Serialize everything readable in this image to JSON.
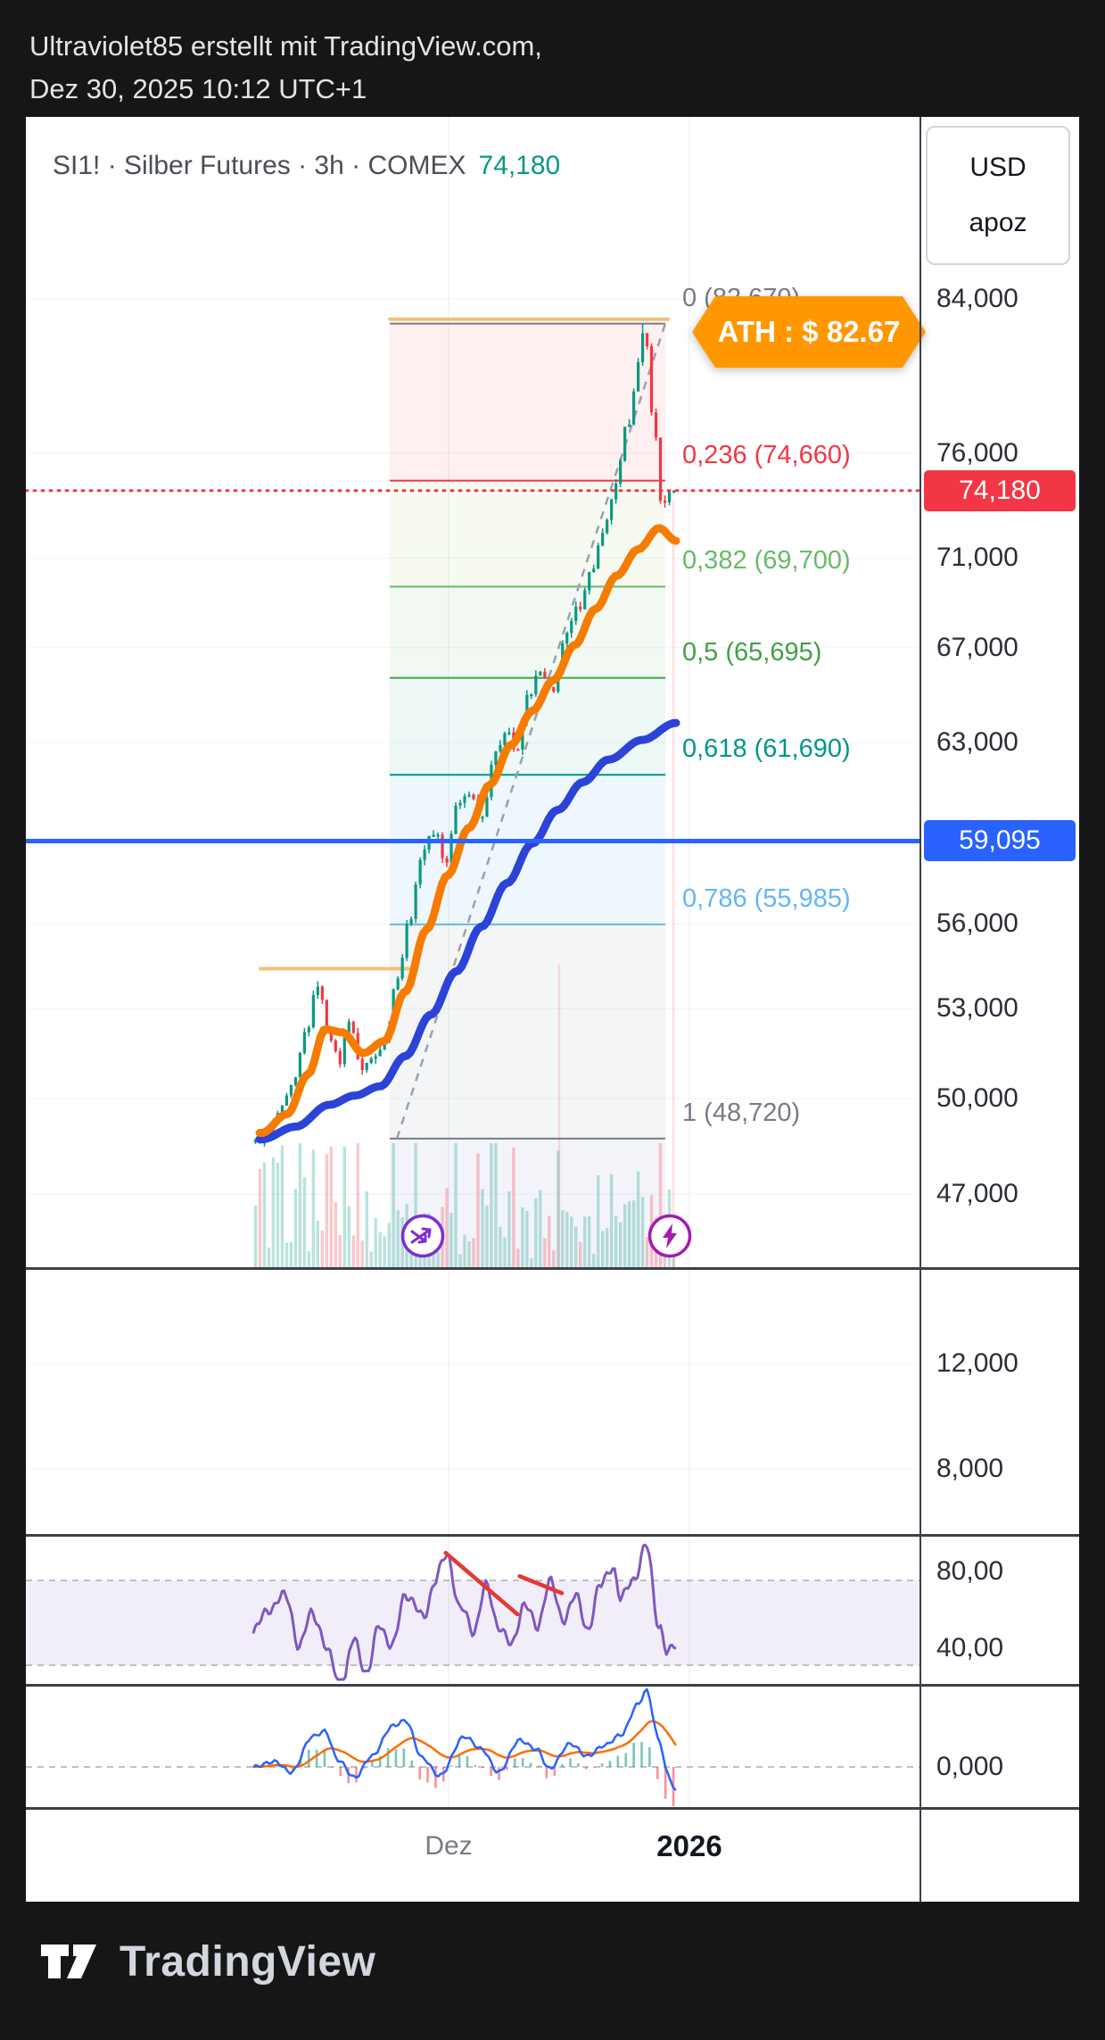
{
  "header": {
    "line1": "Ultraviolet85 erstellt mit TradingView.com,",
    "line2": "Dez 30, 2025 10:12 UTC+1"
  },
  "chart": {
    "ath_callout": {
      "text": "ATH : $ 82.67",
      "color": "#ff9800"
    },
    "currency_box": {
      "line1": "USD",
      "line2": "apoz"
    }
  },
  "chart_data": {
    "type": "candlestick",
    "title": "SI1! · Silber Futures · 3h · COMEX",
    "symbol": "SI1!",
    "description": "Silber Futures",
    "interval": "3h",
    "exchange": "COMEX",
    "last_price": 74180,
    "last_price_text": "74,180",
    "currency": "USD",
    "unit": "apoz",
    "candle_colors": {
      "up": "#089981",
      "down": "#f23645"
    },
    "y_axis": {
      "scale": "log",
      "ticks": [
        {
          "label": "84,000",
          "value": 84000
        },
        {
          "label": "76,000",
          "value": 76000
        },
        {
          "label": "71,000",
          "value": 71000
        },
        {
          "label": "67,000",
          "value": 67000
        },
        {
          "label": "63,000",
          "value": 63000
        },
        {
          "label": "56,000",
          "value": 56000
        },
        {
          "label": "53,000",
          "value": 53000
        },
        {
          "label": "50,000",
          "value": 50000
        },
        {
          "label": "47,000",
          "value": 47000
        }
      ]
    },
    "sub_axis_ticks": [
      "12,000",
      "8,000",
      "80,00",
      "40,00",
      "0,000"
    ],
    "x_axis": {
      "labels": [
        "Dez",
        "2026"
      ]
    },
    "horizontal_lines": [
      {
        "badge": "74,180",
        "value": 74180,
        "color": "#f23645",
        "style": "dotted"
      },
      {
        "badge": "59,095",
        "value": 59095,
        "color": "#2962ff",
        "style": "solid"
      }
    ],
    "fib_retracement": {
      "levels": [
        {
          "level": "0",
          "label": "0 (82,670)",
          "value": 82670,
          "color": "#787b86"
        },
        {
          "level": "0.236",
          "label": "0,236 (74,660)",
          "value": 74660,
          "color": "#f23645"
        },
        {
          "level": "0.382",
          "label": "0,382 (69,700)",
          "value": 69700,
          "color": "#66bb6a"
        },
        {
          "level": "0.5",
          "label": "0,5 (65,695)",
          "value": 65695,
          "color": "#43a047"
        },
        {
          "level": "0.618",
          "label": "0,618 (61,690)",
          "value": 61690,
          "color": "#009688"
        },
        {
          "level": "0.786",
          "label": "0,786 (55,985)",
          "value": 55985,
          "color": "#64b5f6"
        },
        {
          "level": "1",
          "label": "1 (48,720)",
          "value": 48720,
          "color": "#787b86"
        }
      ],
      "band_colors": [
        "rgba(242,54,69,0.08)",
        "rgba(139,195,74,0.08)",
        "rgba(76,175,80,0.07)",
        "rgba(0,150,136,0.07)",
        "rgba(100,181,246,0.10)",
        "rgba(120,123,134,0.08)"
      ]
    },
    "support_lines": {
      "color": "#f2c078",
      "segments": [
        {
          "value": 54400,
          "t0": 0.017,
          "t1": 0.369
        },
        {
          "value": 82900,
          "t0": 0.323,
          "t1": 0.981
        }
      ]
    },
    "price_path": [
      [
        0,
        48600
      ],
      [
        0.03,
        48900
      ],
      [
        0.06,
        49600
      ],
      [
        0.09,
        50400
      ],
      [
        0.12,
        52200
      ],
      [
        0.15,
        53900
      ],
      [
        0.17,
        52400
      ],
      [
        0.2,
        51200
      ],
      [
        0.225,
        52700
      ],
      [
        0.25,
        51000
      ],
      [
        0.28,
        51300
      ],
      [
        0.31,
        52000
      ],
      [
        0.34,
        54200
      ],
      [
        0.37,
        56300
      ],
      [
        0.4,
        58800
      ],
      [
        0.43,
        59500
      ],
      [
        0.455,
        58200
      ],
      [
        0.48,
        60400
      ],
      [
        0.51,
        61000
      ],
      [
        0.54,
        60000
      ],
      [
        0.57,
        62400
      ],
      [
        0.6,
        63600
      ],
      [
        0.625,
        62500
      ],
      [
        0.65,
        64900
      ],
      [
        0.68,
        65900
      ],
      [
        0.71,
        65000
      ],
      [
        0.74,
        67400
      ],
      [
        0.77,
        68700
      ],
      [
        0.8,
        70300
      ],
      [
        0.83,
        72000
      ],
      [
        0.86,
        74300
      ],
      [
        0.89,
        77500
      ],
      [
        0.915,
        80500
      ],
      [
        0.93,
        82300
      ],
      [
        0.95,
        78000
      ],
      [
        0.97,
        73600
      ],
      [
        1,
        74180
      ]
    ],
    "ath_value": 82670,
    "ma_fast": {
      "color": "#f57c00",
      "points": [
        [
          0.02,
          48900
        ],
        [
          0.08,
          49500
        ],
        [
          0.13,
          50800
        ],
        [
          0.17,
          52300
        ],
        [
          0.21,
          52200
        ],
        [
          0.26,
          51500
        ],
        [
          0.31,
          51900
        ],
        [
          0.36,
          53600
        ],
        [
          0.41,
          55800
        ],
        [
          0.46,
          57800
        ],
        [
          0.51,
          59600
        ],
        [
          0.56,
          61300
        ],
        [
          0.61,
          62900
        ],
        [
          0.66,
          64300
        ],
        [
          0.71,
          65600
        ],
        [
          0.76,
          67100
        ],
        [
          0.81,
          68700
        ],
        [
          0.86,
          70200
        ],
        [
          0.91,
          71400
        ],
        [
          0.96,
          72400
        ],
        [
          1,
          71800
        ]
      ]
    },
    "ma_slow": {
      "color": "#2b43d6",
      "points": [
        [
          0.02,
          48700
        ],
        [
          0.1,
          49100
        ],
        [
          0.18,
          49800
        ],
        [
          0.24,
          50100
        ],
        [
          0.3,
          50400
        ],
        [
          0.36,
          51400
        ],
        [
          0.42,
          52800
        ],
        [
          0.48,
          54300
        ],
        [
          0.54,
          55900
        ],
        [
          0.6,
          57500
        ],
        [
          0.66,
          59000
        ],
        [
          0.72,
          60300
        ],
        [
          0.78,
          61400
        ],
        [
          0.84,
          62300
        ],
        [
          0.92,
          63100
        ],
        [
          1,
          63800
        ]
      ]
    },
    "oscillator": {
      "color": "#7e57c2",
      "upper_band": 80,
      "lower_band": 40,
      "points": [
        [
          0,
          55
        ],
        [
          0.04,
          68
        ],
        [
          0.08,
          72
        ],
        [
          0.11,
          48
        ],
        [
          0.14,
          66
        ],
        [
          0.18,
          44
        ],
        [
          0.21,
          30
        ],
        [
          0.24,
          52
        ],
        [
          0.27,
          36
        ],
        [
          0.3,
          60
        ],
        [
          0.33,
          48
        ],
        [
          0.36,
          75
        ],
        [
          0.4,
          62
        ],
        [
          0.43,
          80
        ],
        [
          0.46,
          92
        ],
        [
          0.49,
          66
        ],
        [
          0.52,
          57
        ],
        [
          0.55,
          76
        ],
        [
          0.58,
          60
        ],
        [
          0.61,
          48
        ],
        [
          0.64,
          70
        ],
        [
          0.67,
          57
        ],
        [
          0.7,
          80
        ],
        [
          0.73,
          62
        ],
        [
          0.76,
          72
        ],
        [
          0.79,
          58
        ],
        [
          0.82,
          76
        ],
        [
          0.85,
          88
        ],
        [
          0.87,
          70
        ],
        [
          0.9,
          82
        ],
        [
          0.93,
          95
        ],
        [
          0.96,
          60
        ],
        [
          0.98,
          44
        ],
        [
          1,
          50
        ]
      ],
      "trendlines": [
        {
          "t0": 0.455,
          "v0": 93,
          "t1": 0.625,
          "v1": 64
        },
        {
          "t0": 0.63,
          "v0": 82,
          "t1": 0.73,
          "v1": 74
        }
      ]
    },
    "macd": {
      "line_color": "#2962ff",
      "signal_color": "#ff6d00",
      "points": [
        [
          0,
          0
        ],
        [
          0.05,
          6
        ],
        [
          0.09,
          -6
        ],
        [
          0.14,
          34
        ],
        [
          0.17,
          40
        ],
        [
          0.2,
          8
        ],
        [
          0.24,
          -12
        ],
        [
          0.28,
          12
        ],
        [
          0.33,
          46
        ],
        [
          0.36,
          52
        ],
        [
          0.4,
          10
        ],
        [
          0.44,
          -10
        ],
        [
          0.5,
          34
        ],
        [
          0.54,
          20
        ],
        [
          0.58,
          -6
        ],
        [
          0.63,
          30
        ],
        [
          0.67,
          20
        ],
        [
          0.7,
          -2
        ],
        [
          0.75,
          26
        ],
        [
          0.79,
          12
        ],
        [
          0.83,
          24
        ],
        [
          0.87,
          36
        ],
        [
          0.91,
          70
        ],
        [
          0.93,
          86
        ],
        [
          0.96,
          30
        ],
        [
          0.98,
          -8
        ],
        [
          1,
          -28
        ]
      ]
    }
  },
  "footer": {
    "brand": "TradingView"
  }
}
